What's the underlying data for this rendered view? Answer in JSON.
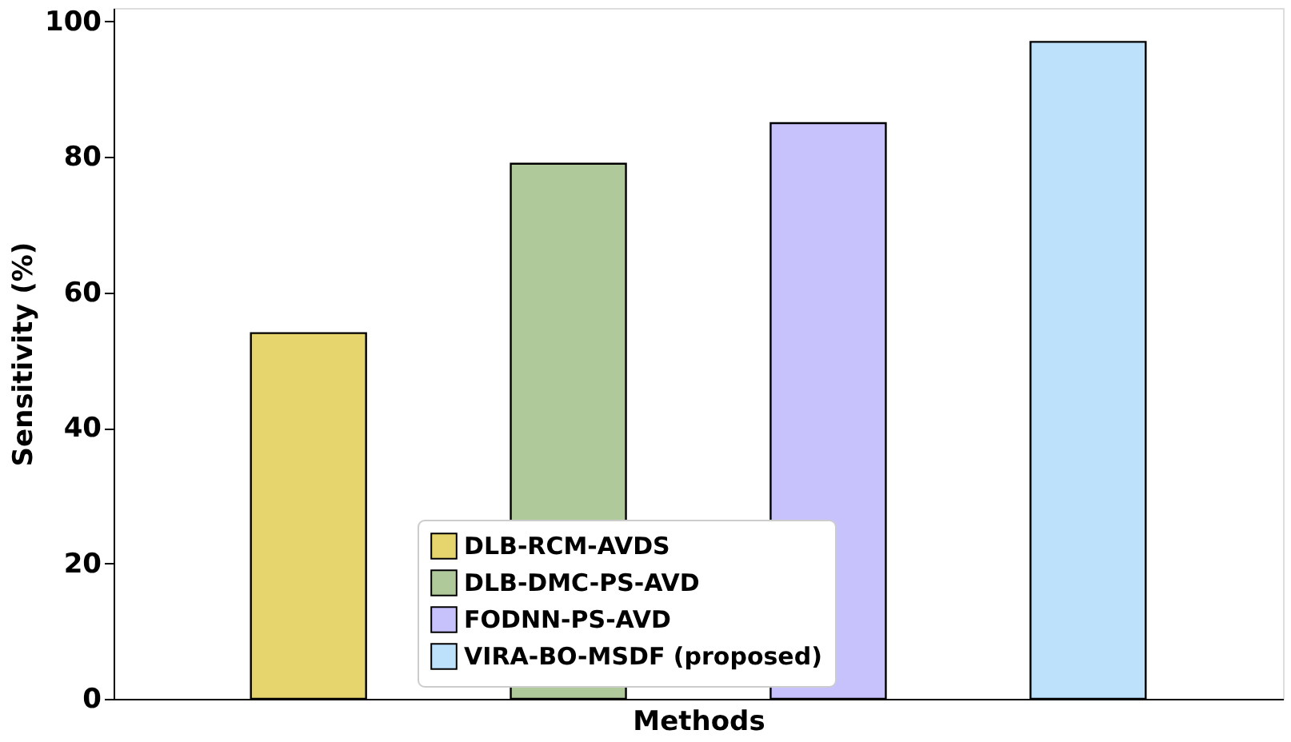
{
  "chart_data": {
    "type": "bar",
    "xlabel": "Methods",
    "ylabel": "Sensitivity (%)",
    "categories": [
      null,
      null,
      null,
      null
    ],
    "series": [
      {
        "name": "DLB-RCM-AVDS",
        "color": "#e6d46c",
        "values": [
          54,
          null,
          null,
          null
        ]
      },
      {
        "name": "DLB-DMC-PS-AVD",
        "color": "#b0c99a",
        "values": [
          null,
          79,
          null,
          null
        ]
      },
      {
        "name": "FODNN-PS-AVD",
        "color": "#c8c2fc",
        "values": [
          null,
          null,
          85,
          null
        ]
      },
      {
        "name": "VIRA-BO-MSDF (proposed)",
        "color": "#bde0fb",
        "values": [
          null,
          null,
          null,
          97
        ]
      }
    ],
    "ylim": [
      0,
      102
    ],
    "yticks": [
      0,
      20,
      40,
      60,
      80,
      100
    ],
    "grid": false,
    "legend": "bottom"
  }
}
